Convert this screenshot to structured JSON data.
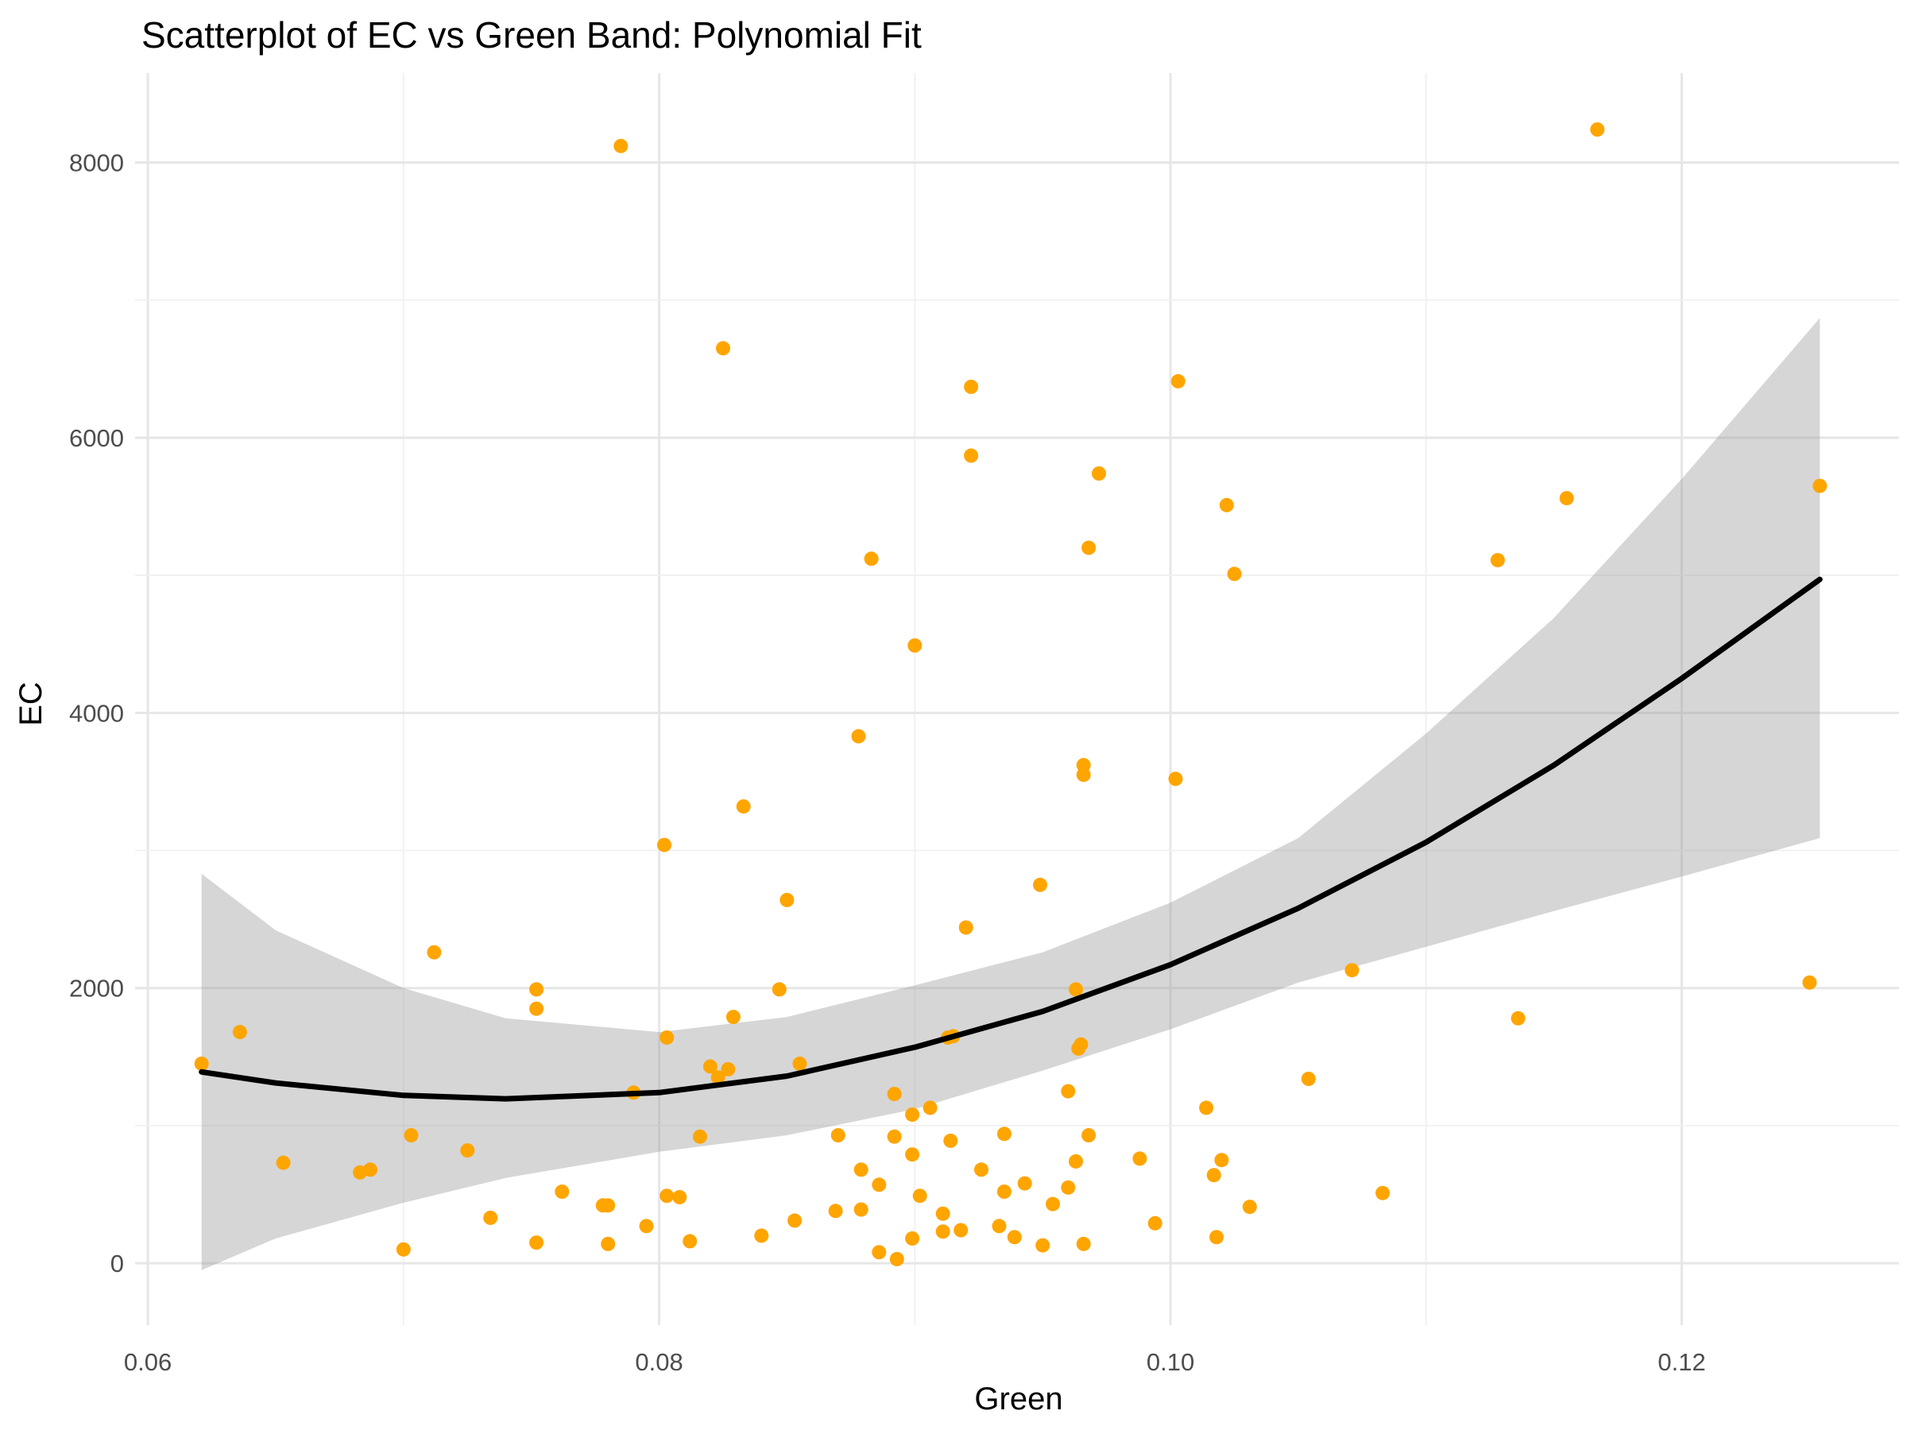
{
  "chart_data": {
    "type": "scatter",
    "title": "Scatterplot of EC vs Green Band: Polynomial Fit",
    "xlabel": "Green",
    "ylabel": "EC",
    "xlim": [
      0.0595,
      0.1285
    ],
    "ylim": [
      -450,
      8650
    ],
    "x_ticks": [
      0.06,
      0.08,
      0.1,
      0.12
    ],
    "x_tick_labels": [
      "0.06",
      "0.08",
      "0.10",
      "0.12"
    ],
    "y_ticks": [
      0,
      2000,
      4000,
      6000,
      8000
    ],
    "y_tick_labels": [
      "0",
      "2000",
      "4000",
      "6000",
      "8000"
    ],
    "grid": true,
    "point_color": "#FFA500",
    "fit_color": "#000000",
    "band_color": "#999999",
    "points": [
      {
        "x": 0.0621,
        "y": 1450
      },
      {
        "x": 0.0636,
        "y": 1680
      },
      {
        "x": 0.0653,
        "y": 730
      },
      {
        "x": 0.0683,
        "y": 660
      },
      {
        "x": 0.0687,
        "y": 680
      },
      {
        "x": 0.07,
        "y": 100
      },
      {
        "x": 0.0703,
        "y": 930
      },
      {
        "x": 0.0712,
        "y": 2260
      },
      {
        "x": 0.0725,
        "y": 820
      },
      {
        "x": 0.0734,
        "y": 330
      },
      {
        "x": 0.0752,
        "y": 1990
      },
      {
        "x": 0.0752,
        "y": 1850
      },
      {
        "x": 0.0752,
        "y": 150
      },
      {
        "x": 0.0762,
        "y": 520
      },
      {
        "x": 0.0778,
        "y": 420
      },
      {
        "x": 0.078,
        "y": 420
      },
      {
        "x": 0.078,
        "y": 140
      },
      {
        "x": 0.0785,
        "y": 8120
      },
      {
        "x": 0.079,
        "y": 1240
      },
      {
        "x": 0.0795,
        "y": 270
      },
      {
        "x": 0.0802,
        "y": 3040
      },
      {
        "x": 0.0803,
        "y": 1640
      },
      {
        "x": 0.0803,
        "y": 490
      },
      {
        "x": 0.0808,
        "y": 480
      },
      {
        "x": 0.0812,
        "y": 160
      },
      {
        "x": 0.0816,
        "y": 920
      },
      {
        "x": 0.082,
        "y": 1430
      },
      {
        "x": 0.0823,
        "y": 1350
      },
      {
        "x": 0.0825,
        "y": 6650
      },
      {
        "x": 0.0827,
        "y": 1410
      },
      {
        "x": 0.0829,
        "y": 1790
      },
      {
        "x": 0.0833,
        "y": 3320
      },
      {
        "x": 0.084,
        "y": 200
      },
      {
        "x": 0.0847,
        "y": 1990
      },
      {
        "x": 0.085,
        "y": 2640
      },
      {
        "x": 0.0853,
        "y": 310
      },
      {
        "x": 0.0855,
        "y": 1450
      },
      {
        "x": 0.0869,
        "y": 380
      },
      {
        "x": 0.087,
        "y": 930
      },
      {
        "x": 0.0878,
        "y": 3830
      },
      {
        "x": 0.0879,
        "y": 680
      },
      {
        "x": 0.0879,
        "y": 390
      },
      {
        "x": 0.0883,
        "y": 5120
      },
      {
        "x": 0.0886,
        "y": 570
      },
      {
        "x": 0.0886,
        "y": 80
      },
      {
        "x": 0.0892,
        "y": 920
      },
      {
        "x": 0.0892,
        "y": 1230
      },
      {
        "x": 0.0893,
        "y": 30
      },
      {
        "x": 0.0899,
        "y": 790
      },
      {
        "x": 0.0899,
        "y": 1080
      },
      {
        "x": 0.0899,
        "y": 180
      },
      {
        "x": 0.09,
        "y": 4490
      },
      {
        "x": 0.0902,
        "y": 490
      },
      {
        "x": 0.0906,
        "y": 1130
      },
      {
        "x": 0.0911,
        "y": 360
      },
      {
        "x": 0.0911,
        "y": 230
      },
      {
        "x": 0.0913,
        "y": 1640
      },
      {
        "x": 0.0914,
        "y": 890
      },
      {
        "x": 0.0915,
        "y": 1650
      },
      {
        "x": 0.0918,
        "y": 240
      },
      {
        "x": 0.092,
        "y": 2440
      },
      {
        "x": 0.0922,
        "y": 6370
      },
      {
        "x": 0.0922,
        "y": 5870
      },
      {
        "x": 0.0926,
        "y": 680
      },
      {
        "x": 0.0933,
        "y": 270
      },
      {
        "x": 0.0935,
        "y": 520
      },
      {
        "x": 0.0935,
        "y": 940
      },
      {
        "x": 0.0939,
        "y": 190
      },
      {
        "x": 0.0943,
        "y": 580
      },
      {
        "x": 0.0949,
        "y": 2750
      },
      {
        "x": 0.095,
        "y": 130
      },
      {
        "x": 0.0954,
        "y": 430
      },
      {
        "x": 0.096,
        "y": 550
      },
      {
        "x": 0.096,
        "y": 1250
      },
      {
        "x": 0.0963,
        "y": 1990
      },
      {
        "x": 0.0963,
        "y": 740
      },
      {
        "x": 0.0964,
        "y": 1560
      },
      {
        "x": 0.0965,
        "y": 1590
      },
      {
        "x": 0.0966,
        "y": 3620
      },
      {
        "x": 0.0966,
        "y": 3550
      },
      {
        "x": 0.0966,
        "y": 140
      },
      {
        "x": 0.0968,
        "y": 5200
      },
      {
        "x": 0.0968,
        "y": 930
      },
      {
        "x": 0.0972,
        "y": 5740
      },
      {
        "x": 0.0988,
        "y": 760
      },
      {
        "x": 0.0994,
        "y": 290
      },
      {
        "x": 0.1002,
        "y": 3520
      },
      {
        "x": 0.1003,
        "y": 6410
      },
      {
        "x": 0.1014,
        "y": 1130
      },
      {
        "x": 0.1017,
        "y": 640
      },
      {
        "x": 0.1018,
        "y": 190
      },
      {
        "x": 0.102,
        "y": 750
      },
      {
        "x": 0.1022,
        "y": 5510
      },
      {
        "x": 0.1025,
        "y": 5010
      },
      {
        "x": 0.1031,
        "y": 410
      },
      {
        "x": 0.1054,
        "y": 1340
      },
      {
        "x": 0.1071,
        "y": 2130
      },
      {
        "x": 0.1083,
        "y": 510
      },
      {
        "x": 0.1128,
        "y": 5110
      },
      {
        "x": 0.1136,
        "y": 1780
      },
      {
        "x": 0.1155,
        "y": 5560
      },
      {
        "x": 0.1167,
        "y": 8240
      },
      {
        "x": 0.125,
        "y": 2040
      },
      {
        "x": 0.1254,
        "y": 5650
      }
    ],
    "fit": {
      "type": "polynomial",
      "degree": 2,
      "x": [
        0.0621,
        0.065,
        0.07,
        0.074,
        0.08,
        0.085,
        0.09,
        0.095,
        0.1,
        0.105,
        0.11,
        0.115,
        0.12,
        0.1254
      ],
      "y": [
        1390,
        1310,
        1220,
        1195,
        1240,
        1360,
        1570,
        1830,
        2170,
        2580,
        3060,
        3620,
        4250,
        4970
      ],
      "lower": [
        -50,
        180,
        440,
        620,
        810,
        930,
        1120,
        1400,
        1700,
        2040,
        2300,
        2560,
        2810,
        3090
      ],
      "upper": [
        2830,
        2420,
        2000,
        1780,
        1680,
        1790,
        2020,
        2260,
        2620,
        3090,
        3850,
        4690,
        5700,
        6870
      ]
    }
  }
}
